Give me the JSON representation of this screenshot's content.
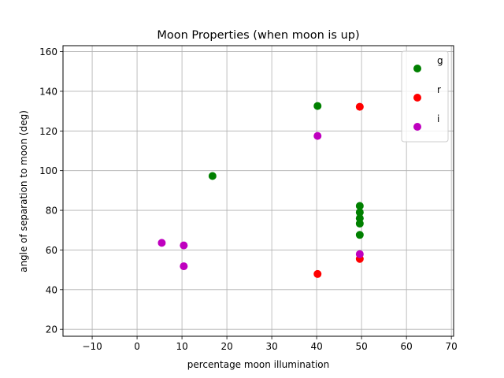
{
  "chart_data": {
    "type": "scatter",
    "title": "Moon Properties (when moon is up)",
    "xlabel": "percentage moon illumination",
    "ylabel": "angle of separation to moon (deg)",
    "xlim": [
      -16.5,
      70.5
    ],
    "ylim": [
      16.5,
      163
    ],
    "xticks": [
      -10,
      0,
      10,
      20,
      30,
      40,
      50,
      60,
      70
    ],
    "yticks": [
      20,
      40,
      60,
      80,
      100,
      120,
      140,
      160
    ],
    "grid": true,
    "legend": "upper right",
    "series": [
      {
        "name": "g",
        "color": "#008000",
        "points": [
          [
            16.8,
            97.3
          ],
          [
            40.2,
            132.6
          ],
          [
            49.6,
            82.2
          ],
          [
            49.6,
            79.0
          ],
          [
            49.6,
            76.0
          ],
          [
            49.6,
            73.3
          ],
          [
            49.6,
            67.6
          ]
        ]
      },
      {
        "name": "r",
        "color": "#ff0000",
        "points": [
          [
            49.6,
            132.2
          ],
          [
            40.2,
            47.9
          ],
          [
            49.6,
            55.5
          ]
        ]
      },
      {
        "name": "i",
        "color": "#bf00bf",
        "points": [
          [
            40.2,
            117.5
          ],
          [
            5.5,
            63.6
          ],
          [
            10.4,
            62.3
          ],
          [
            10.4,
            51.8
          ],
          [
            49.6,
            57.9
          ]
        ]
      }
    ]
  }
}
